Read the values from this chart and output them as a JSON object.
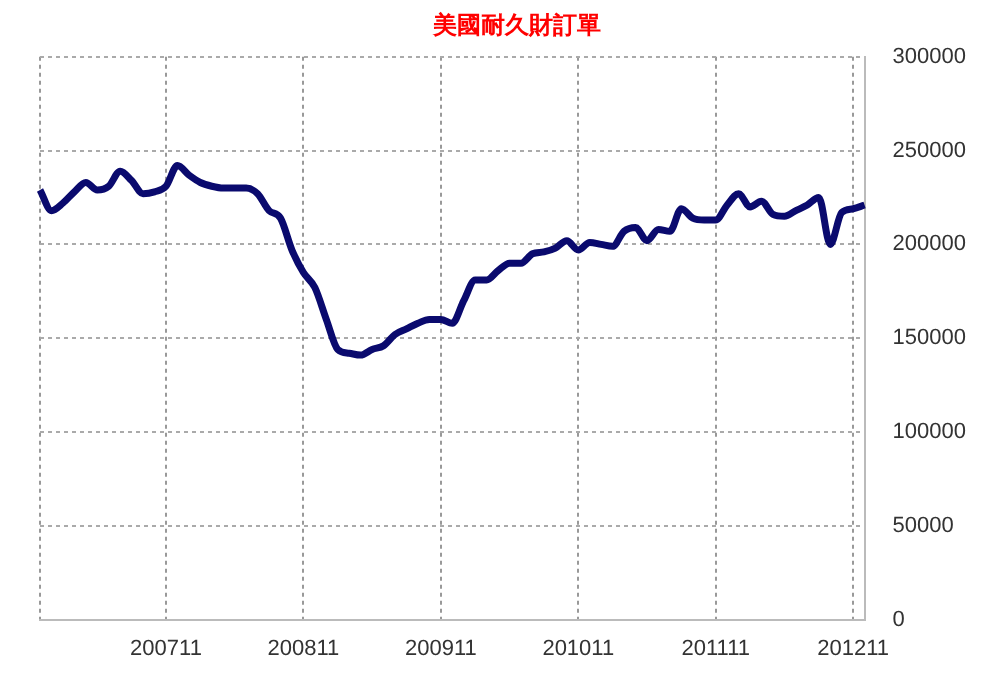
{
  "chart_data": {
    "type": "line",
    "title": "美國耐久財訂單",
    "categories": [
      null,
      null,
      null,
      null,
      null,
      null,
      null,
      null,
      null,
      null,
      null,
      "200711",
      null,
      null,
      null,
      null,
      null,
      null,
      null,
      null,
      null,
      null,
      null,
      "200811",
      null,
      null,
      null,
      null,
      null,
      null,
      null,
      null,
      null,
      null,
      null,
      "200911",
      null,
      null,
      null,
      null,
      null,
      null,
      null,
      null,
      null,
      null,
      null,
      "201011",
      null,
      null,
      null,
      null,
      null,
      null,
      null,
      null,
      null,
      null,
      null,
      "201111",
      null,
      null,
      null,
      null,
      null,
      null,
      null,
      null,
      null,
      null,
      null,
      "201211",
      null
    ],
    "series": [
      {
        "color": "#0a0a6e",
        "values": [
          229000,
          218000,
          222000,
          228000,
          233000,
          229000,
          231000,
          239000,
          234000,
          227000,
          228000,
          231000,
          242000,
          237000,
          233000,
          231000,
          230000,
          230000,
          230000,
          227000,
          218000,
          214000,
          197000,
          185000,
          177000,
          160000,
          144000,
          142000,
          141000,
          144000,
          146000,
          152000,
          155000,
          158000,
          160000,
          160000,
          158000,
          170000,
          181000,
          181000,
          186000,
          190000,
          190000,
          195000,
          196000,
          198000,
          202000,
          197000,
          201000,
          200000,
          199000,
          207000,
          209000,
          202000,
          208000,
          207000,
          219000,
          214000,
          213000,
          213000,
          221000,
          227000,
          220000,
          223000,
          216000,
          215000,
          218000,
          221000,
          225000,
          200000,
          217000,
          219000,
          221000
        ]
      }
    ],
    "ylim": [
      0,
      300000
    ],
    "yticks": [
      0,
      50000,
      100000,
      150000,
      200000,
      250000,
      300000
    ],
    "grid": true,
    "legend": false,
    "marker": "none",
    "line_style": "solid"
  }
}
